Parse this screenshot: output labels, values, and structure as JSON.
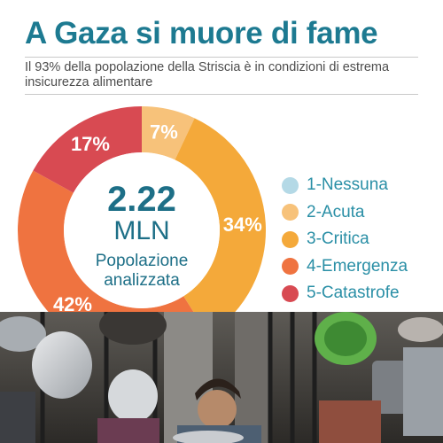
{
  "header": {
    "title": "A Gaza si muore di fame",
    "subtitle": "Il 93% della popolazione della Striscia è in condizioni di estrema insicurezza alimentare"
  },
  "center": {
    "value": "2.22",
    "unit": "MLN",
    "caption_line1": "Popolazione",
    "caption_line2": "analizzata"
  },
  "chart_data": {
    "type": "pie",
    "variant": "donut",
    "title": "A Gaza si muore di fame",
    "subtitle": "Il 93% della popolazione della Striscia è in condizioni di estrema insicurezza alimentare",
    "slices": [
      {
        "name": "1-Nessuna",
        "value": 0,
        "label": "",
        "color": "#b4d9e6"
      },
      {
        "name": "2-Acuta",
        "value": 7,
        "label": "7%",
        "color": "#f7c27a"
      },
      {
        "name": "3-Critica",
        "value": 34,
        "label": "34%",
        "color": "#f4a93a"
      },
      {
        "name": "4-Emergenza",
        "value": 42,
        "label": "42%",
        "color": "#ef7340"
      },
      {
        "name": "5-Catastrofe",
        "value": 17,
        "label": "17%",
        "color": "#d84a52"
      }
    ],
    "legend_position": "right"
  },
  "colors": {
    "title": "#1d7a91",
    "accent": "#2a8fa6"
  },
  "photo": {
    "icon": "photo-children-with-pots"
  }
}
